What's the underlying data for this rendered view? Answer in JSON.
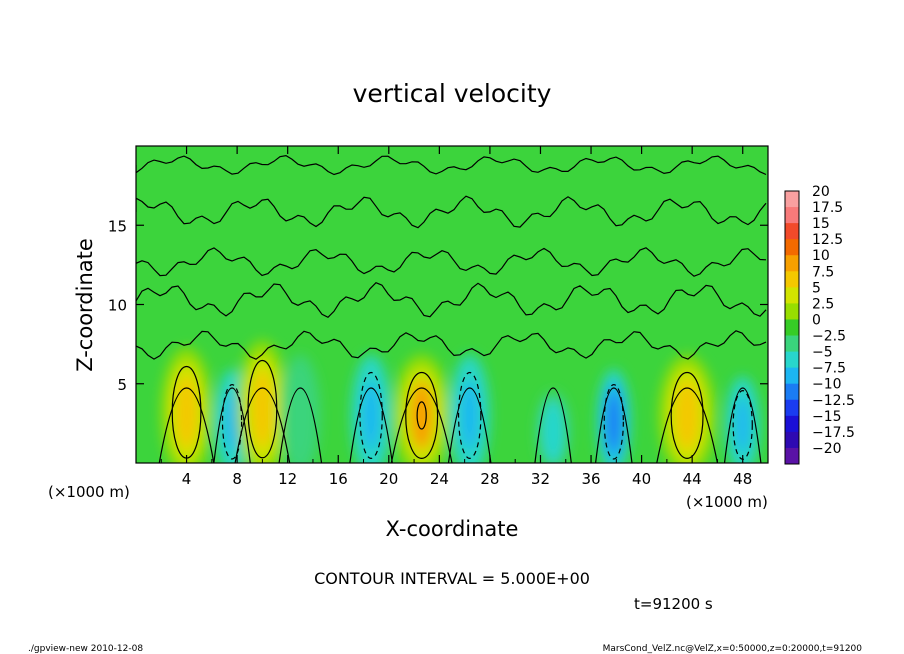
{
  "chart_data": {
    "type": "heatmap",
    "title": "vertical velocity",
    "xlabel": "X-coordinate",
    "ylabel": "Z-coordinate",
    "x_unit": "(×1000 m)",
    "x_unit_right": "(×1000 m)",
    "xlim": [
      0,
      50
    ],
    "ylim": [
      0,
      20
    ],
    "x_ticks": [
      4,
      8,
      12,
      16,
      20,
      24,
      28,
      32,
      36,
      40,
      44,
      48
    ],
    "y_ticks": [
      5,
      10,
      15
    ],
    "contour_interval_text": "CONTOUR INTERVAL = 5.000E+00",
    "time_text": "t=91200 s",
    "colorbar": {
      "labels": [
        "20",
        "17.5",
        "15",
        "12.5",
        "10",
        "7.5",
        "5",
        "2.5",
        "0",
        "−2.5",
        "−5",
        "−7.5",
        "−10",
        "−12.5",
        "−15",
        "−17.5",
        "−20"
      ],
      "colors": [
        "#f9a0a0",
        "#f87a7a",
        "#f24a2a",
        "#f36a00",
        "#f7a000",
        "#f4c800",
        "#d2e400",
        "#98de00",
        "#36cc26",
        "#3ad47c",
        "#28d6cc",
        "#1cb6f2",
        "#1a7cf4",
        "#1a3cf0",
        "#1a10d6",
        "#2e0ab2",
        "#5a12a6"
      ]
    },
    "cells": [
      {
        "x": 4.0,
        "z": 3.2,
        "w": 0.9,
        "v": 9.0
      },
      {
        "x": 7.6,
        "z": 2.6,
        "w": 0.6,
        "v": -7.0
      },
      {
        "x": 10.0,
        "z": 3.4,
        "w": 0.9,
        "v": 9.0
      },
      {
        "x": 13.0,
        "z": 3.0,
        "w": 0.7,
        "v": -2.5
      },
      {
        "x": 18.6,
        "z": 3.0,
        "w": 0.7,
        "v": -6.5
      },
      {
        "x": 22.6,
        "z": 3.0,
        "w": 1.0,
        "v": 10.5
      },
      {
        "x": 26.4,
        "z": 3.0,
        "w": 0.7,
        "v": -7.0
      },
      {
        "x": 33.0,
        "z": 2.0,
        "w": 0.6,
        "v": -4.0
      },
      {
        "x": 37.8,
        "z": 2.6,
        "w": 0.6,
        "v": -8.5
      },
      {
        "x": 43.6,
        "z": 3.0,
        "w": 1.0,
        "v": 9.5
      },
      {
        "x": 48.0,
        "z": 2.4,
        "w": 0.6,
        "v": -6.0
      }
    ]
  },
  "footer": {
    "left": "./gpview-new   2010-12-08",
    "right": "MarsCond_VelZ.nc@VelZ,x=0:50000,z=0:20000,t=91200"
  }
}
